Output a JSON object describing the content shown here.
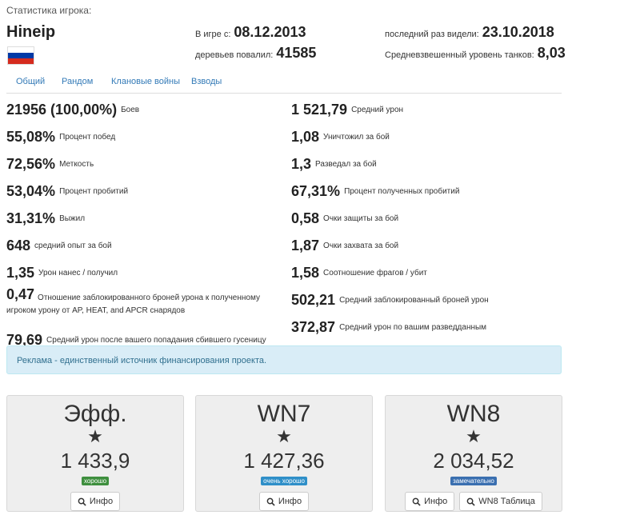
{
  "header": {
    "caption": "Статистика игрока:",
    "player_name": "Hineip",
    "since_label": "В игре с:",
    "since_value": "08.12.2013",
    "trees_label": "деревьев повалил:",
    "trees_value": "41585",
    "last_seen_label": "последний раз видели:",
    "last_seen_value": "23.10.2018",
    "avg_tier_label": "Средневзвешенный уровень танков:",
    "avg_tier_value": "8,03"
  },
  "flag": {
    "stripes": [
      "#ffffff",
      "#0039a6",
      "#d52b1e"
    ]
  },
  "tabs": [
    "Общий",
    "Рандом",
    "Клановые войны",
    "Взводы"
  ],
  "stats_left": [
    {
      "value": "21956 (100,00%)",
      "label": "Боев"
    },
    {
      "value": "55,08%",
      "label": "Процент побед"
    },
    {
      "value": "72,56%",
      "label": "Меткость"
    },
    {
      "value": "53,04%",
      "label": "Процент пробитий"
    },
    {
      "value": "31,31%",
      "label": "Выжил"
    },
    {
      "value": "648",
      "label": "средний опыт за бой"
    },
    {
      "value": "1,35",
      "label": "Урон нанес / получил"
    },
    {
      "value": "0,47",
      "label": "Отношение заблокированного броней урона к полученному игроком урону от AP, HEAT, and APCR снарядов"
    },
    {
      "value": "79,69",
      "label": "Средний урон после вашего попадания сбившего гусеницу"
    }
  ],
  "stats_right": [
    {
      "value": "1 521,79",
      "label": "Средний урон"
    },
    {
      "value": "1,08",
      "label": "Уничтожил за бой"
    },
    {
      "value": "1,3",
      "label": "Разведал за бой"
    },
    {
      "value": "67,31%",
      "label": "Процент полученных пробитий"
    },
    {
      "value": "0,58",
      "label": "Очки защиты за бой"
    },
    {
      "value": "1,87",
      "label": "Очки захвата за бой"
    },
    {
      "value": "1,58",
      "label": "Соотношение фрагов / убит"
    },
    {
      "value": "502,21",
      "label": "Средний заблокированный броней урон"
    },
    {
      "value": "372,87",
      "label": "Средний урон по вашим разведданным"
    }
  ],
  "alert": "Реклама - единственный источник финансирования проекта.",
  "ratings": [
    {
      "title": "Эфф.",
      "star": "★",
      "value": "1 433,9",
      "badge": "хорошо",
      "badge_color": "#3e8f3e",
      "buttons": [
        "Инфо"
      ]
    },
    {
      "title": "WN7",
      "star": "★",
      "value": "1 427,36",
      "badge": "очень хорошо",
      "badge_color": "#2f8fc8",
      "buttons": [
        "Инфо"
      ]
    },
    {
      "title": "WN8",
      "star": "★",
      "value": "2 034,52",
      "badge": "замечательно",
      "badge_color": "#3a6fb0",
      "buttons": [
        "Инфо",
        "WN8 Таблица"
      ]
    }
  ],
  "icons": {
    "button_icon": "search-icon"
  }
}
